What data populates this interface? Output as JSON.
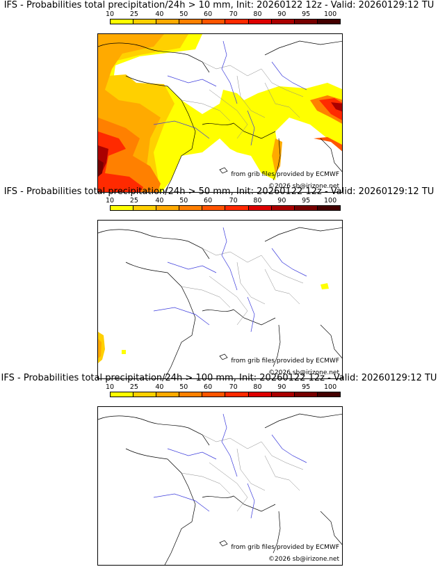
{
  "legend_colors": [
    "#ffff00",
    "#ffd000",
    "#ffaa00",
    "#ff8000",
    "#ff5500",
    "#ff2a00",
    "#dd0000",
    "#aa0000",
    "#770000",
    "#440000"
  ],
  "panels": [
    {
      "title": "IFS - Probabilities total precipitation/24h > 10 mm, Init: 20260122 12z - Valid: 20260129:12 TU",
      "legend_ticks": [
        "10",
        "25",
        "40",
        "50",
        "60",
        "70",
        "80",
        "90",
        "95",
        "100"
      ],
      "credit": "from grib files provided by ECMWF",
      "copyright": "©2026 sb@irizone.net"
    },
    {
      "title": "IFS - Probabilities total precipitation/24h > 50 mm, Init: 20260122 12z - Valid: 20260129:12 TU",
      "legend_ticks": [
        "10",
        "25",
        "40",
        "50",
        "60",
        "70",
        "80",
        "90",
        "95",
        "100"
      ],
      "credit": "from grib files provided by ECMWF",
      "copyright": "©2026 sb@irizone.net"
    },
    {
      "title": "IFS - Probabilities total precipitation/24h > 100 mm, Init: 20260122 12z - Valid: 20260129:12 TU",
      "legend_ticks": [
        "10",
        "25",
        "40",
        "50",
        "60",
        "70",
        "80",
        "90",
        "95",
        "100"
      ],
      "credit": "from grib files provided by ECMWF",
      "copyright": "©2026 sb@irizone.net"
    }
  ]
}
